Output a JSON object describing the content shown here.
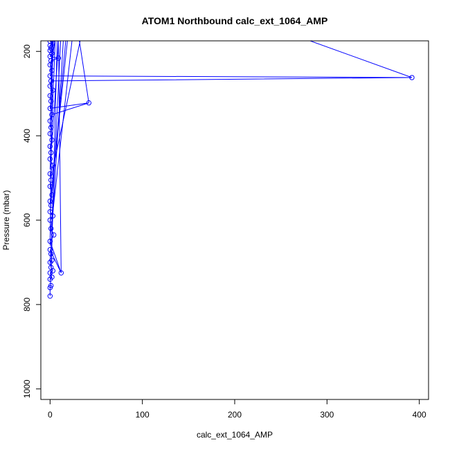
{
  "chart_data": {
    "type": "line",
    "title": "ATOM1 Northbound calc_ext_1064_AMP",
    "xlabel": "calc_ext_1064_AMP",
    "ylabel": "Pressure (mbar)",
    "xlim": [
      -10,
      410
    ],
    "ylim": [
      1025,
      175
    ],
    "y_reversed": true,
    "x_ticks": [
      0,
      100,
      200,
      300,
      400
    ],
    "y_ticks": [
      200,
      400,
      600,
      800,
      1000
    ],
    "grid": false,
    "colors": {
      "series": "#0000ff",
      "axes": "#000000"
    },
    "series": [
      {
        "points": [
          [
            0,
            780
          ],
          [
            0,
            760
          ],
          [
            1,
            755
          ],
          [
            0,
            740
          ],
          [
            2,
            735
          ],
          [
            0,
            725
          ],
          [
            3,
            720
          ],
          [
            1,
            712
          ],
          [
            0,
            700
          ],
          [
            2,
            695
          ],
          [
            1,
            680
          ],
          [
            0,
            670
          ],
          [
            12,
            725
          ],
          [
            0,
            650
          ],
          [
            4,
            635
          ],
          [
            1,
            620
          ],
          [
            0,
            600
          ],
          [
            3,
            590
          ],
          [
            0,
            580
          ],
          [
            1,
            565
          ],
          [
            0,
            555
          ],
          [
            2,
            540
          ],
          [
            0,
            520
          ],
          [
            1,
            505
          ],
          [
            0,
            490
          ],
          [
            3,
            470
          ],
          [
            0,
            455
          ],
          [
            1,
            440
          ],
          [
            0,
            425
          ],
          [
            2,
            410
          ],
          [
            0,
            395
          ],
          [
            1,
            380
          ],
          [
            0,
            365
          ],
          [
            2,
            350
          ],
          [
            42,
            322
          ],
          [
            0,
            335
          ],
          [
            1,
            318
          ],
          [
            0,
            305
          ],
          [
            3,
            292
          ],
          [
            0,
            282
          ],
          [
            1,
            270
          ],
          [
            392,
            262
          ],
          [
            0,
            258
          ],
          [
            2,
            245
          ],
          [
            0,
            232
          ],
          [
            1,
            222
          ],
          [
            9,
            216
          ],
          [
            0,
            212
          ],
          [
            2,
            205
          ],
          [
            0,
            198
          ],
          [
            1,
            192
          ],
          [
            0,
            186
          ],
          [
            3,
            180
          ],
          [
            0,
            176
          ]
        ]
      }
    ],
    "offscreen_segments": [
      [
        [
          1,
          740
        ],
        [
          8,
          150
        ]
      ],
      [
        [
          0,
          700
        ],
        [
          15,
          150
        ]
      ],
      [
        [
          2,
          600
        ],
        [
          12,
          150
        ]
      ],
      [
        [
          0,
          560
        ],
        [
          20,
          150
        ]
      ],
      [
        [
          1,
          500
        ],
        [
          35,
          150
        ]
      ],
      [
        [
          0,
          480
        ],
        [
          6,
          150
        ]
      ],
      [
        [
          2,
          420
        ],
        [
          10,
          150
        ]
      ],
      [
        [
          0,
          380
        ],
        [
          4,
          150
        ]
      ],
      [
        [
          1,
          300
        ],
        [
          2,
          150
        ]
      ],
      [
        [
          0,
          250
        ],
        [
          7,
          150
        ]
      ],
      [
        [
          12,
          725
        ],
        [
          9,
          150
        ]
      ],
      [
        [
          0,
          640
        ],
        [
          25,
          150
        ]
      ],
      [
        [
          392,
          262
        ],
        [
          250,
          150
        ]
      ],
      [
        [
          42,
          322
        ],
        [
          30,
          150
        ]
      ],
      [
        [
          1,
          560
        ],
        [
          18,
          150
        ]
      ],
      [
        [
          0,
          660
        ],
        [
          3,
          150
        ]
      ]
    ]
  }
}
